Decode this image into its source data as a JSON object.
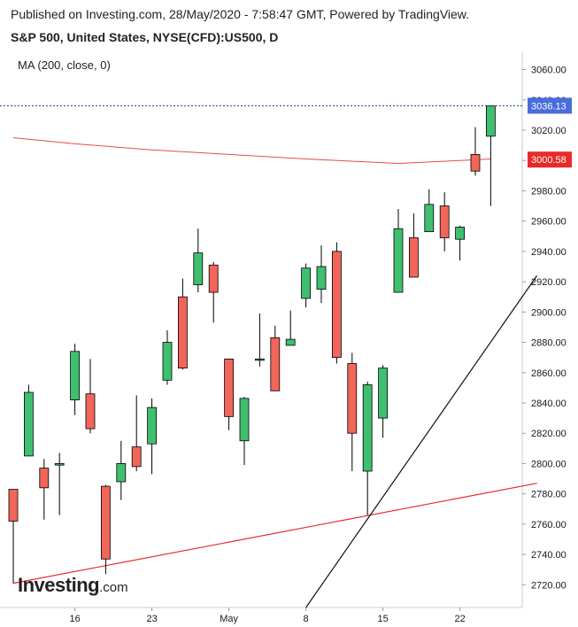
{
  "header": {
    "published": "Published on Investing.com, 28/May/2020 - 7:58:47 GMT, Powered by TradingView.",
    "instrument": "S&P 500, United States, NYSE(CFD):US500, D"
  },
  "indicator": {
    "label": "MA (200, close, 0)"
  },
  "logo": {
    "main": "Investing",
    "suffix": ".com"
  },
  "colors": {
    "up": "#3fbf6f",
    "down": "#f0665a",
    "ma": "#e84a4a",
    "trendline_support": "#e82a2a",
    "trendline_steep": "#111111",
    "last_price_tag": "#4a6cdc",
    "ma_tag": "#e82a2a",
    "axis_line": "#cccccc"
  },
  "chart_data": {
    "type": "candlestick",
    "title": "S&P 500, United States, NYSE(CFD):US500, D",
    "ylim": [
      2705,
      3072
    ],
    "y_ticks": [
      2720,
      2740,
      2760,
      2780,
      2800,
      2820,
      2840,
      2860,
      2880,
      2900,
      2920,
      2940,
      2960,
      2980,
      3000,
      3020,
      3040,
      3060
    ],
    "x_tick_labels": [
      {
        "label": "16",
        "index": 4
      },
      {
        "label": "23",
        "index": 9
      },
      {
        "label": "May",
        "index": 14
      },
      {
        "label": "8",
        "index": 19
      },
      {
        "label": "15",
        "index": 24
      },
      {
        "label": "22",
        "index": 29
      }
    ],
    "candles": [
      {
        "o": 2783,
        "h": 2783,
        "l": 2721,
        "c": 2762
      },
      {
        "o": 2805,
        "h": 2852,
        "l": 2805,
        "c": 2847
      },
      {
        "o": 2797,
        "h": 2803,
        "l": 2763,
        "c": 2784
      },
      {
        "o": 2799,
        "h": 2807,
        "l": 2766,
        "c": 2800
      },
      {
        "o": 2842,
        "h": 2879,
        "l": 2832,
        "c": 2874
      },
      {
        "o": 2846,
        "h": 2869,
        "l": 2820,
        "c": 2823
      },
      {
        "o": 2785,
        "h": 2786,
        "l": 2727,
        "c": 2737
      },
      {
        "o": 2788,
        "h": 2815,
        "l": 2776,
        "c": 2800
      },
      {
        "o": 2811,
        "h": 2845,
        "l": 2795,
        "c": 2798
      },
      {
        "o": 2813,
        "h": 2843,
        "l": 2793,
        "c": 2837
      },
      {
        "o": 2855,
        "h": 2888,
        "l": 2852,
        "c": 2880
      },
      {
        "o": 2910,
        "h": 2922,
        "l": 2862,
        "c": 2863
      },
      {
        "o": 2918,
        "h": 2955,
        "l": 2913,
        "c": 2939
      },
      {
        "o": 2931,
        "h": 2933,
        "l": 2893,
        "c": 2913
      },
      {
        "o": 2869,
        "h": 2869,
        "l": 2822,
        "c": 2831
      },
      {
        "o": 2815,
        "h": 2844,
        "l": 2799,
        "c": 2843
      },
      {
        "o": 2869,
        "h": 2899,
        "l": 2864,
        "c": 2869
      },
      {
        "o": 2883,
        "h": 2891,
        "l": 2849,
        "c": 2848
      },
      {
        "o": 2878,
        "h": 2901,
        "l": 2878,
        "c": 2882
      },
      {
        "o": 2909,
        "h": 2932,
        "l": 2903,
        "c": 2929
      },
      {
        "o": 2915,
        "h": 2944,
        "l": 2906,
        "c": 2930
      },
      {
        "o": 2940,
        "h": 2946,
        "l": 2866,
        "c": 2870
      },
      {
        "o": 2866,
        "h": 2873,
        "l": 2795,
        "c": 2820
      },
      {
        "o": 2795,
        "h": 2854,
        "l": 2766,
        "c": 2852
      },
      {
        "o": 2830,
        "h": 2865,
        "l": 2817,
        "c": 2863
      },
      {
        "o": 2913,
        "h": 2968,
        "l": 2913,
        "c": 2955
      },
      {
        "o": 2949,
        "h": 2965,
        "l": 2923,
        "c": 2923
      },
      {
        "o": 2953,
        "h": 2981,
        "l": 2953,
        "c": 2971
      },
      {
        "o": 2970,
        "h": 2979,
        "l": 2940,
        "c": 2949
      },
      {
        "o": 2948,
        "h": 2957,
        "l": 2934,
        "c": 2956
      },
      {
        "o": 3004,
        "h": 3022,
        "l": 2990,
        "c": 2993
      },
      {
        "o": 3016,
        "h": 3036,
        "l": 2970,
        "c": 3036
      }
    ],
    "moving_average": {
      "name": "MA (200, close, 0)",
      "points": [
        [
          0,
          3015
        ],
        [
          4,
          3011
        ],
        [
          9,
          3007
        ],
        [
          14,
          3004
        ],
        [
          19,
          3001
        ],
        [
          23,
          2999
        ],
        [
          25,
          2998
        ],
        [
          27,
          2999
        ],
        [
          29,
          3000
        ],
        [
          31,
          3001
        ]
      ]
    },
    "trendlines": [
      {
        "name": "support",
        "from": [
          0,
          2721
        ],
        "to": [
          34,
          2787
        ]
      },
      {
        "name": "steep",
        "from": [
          19,
          2705
        ],
        "to": [
          34,
          2924
        ]
      }
    ],
    "last_price": {
      "value": "3036.13",
      "numeric": 3036.13
    },
    "ma_value": {
      "value": "3000.58",
      "numeric": 3000.58
    }
  }
}
